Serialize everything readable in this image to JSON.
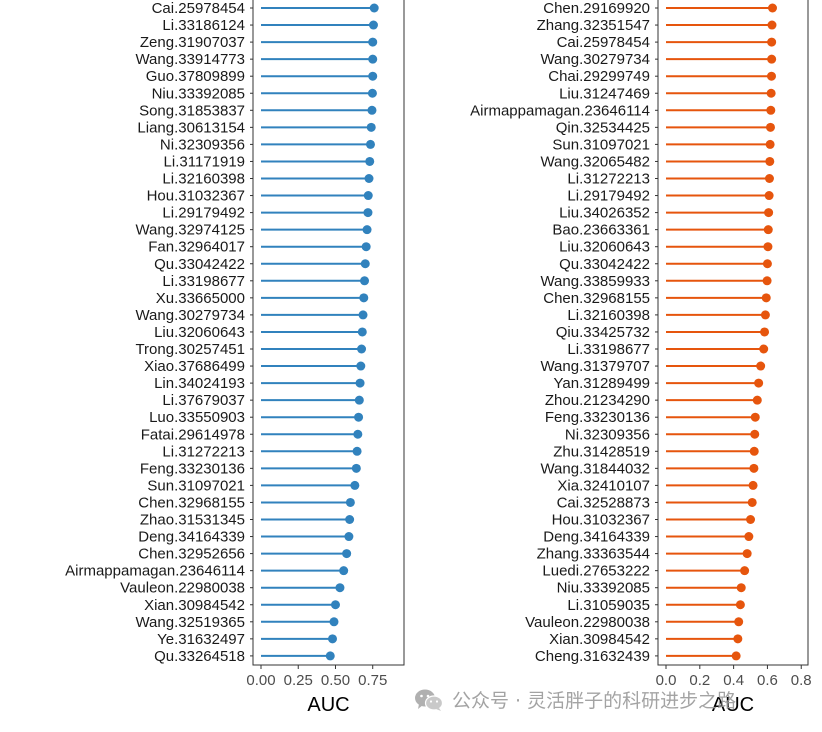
{
  "chart_data": [
    {
      "type": "lollipop",
      "color": "#3182bd",
      "xlabel": "AUC",
      "xlim": [
        0,
        0.96
      ],
      "xticks": [
        0.0,
        0.25,
        0.5,
        0.75
      ],
      "xtick_labels": [
        "0.00",
        "0.25",
        "0.50",
        "0.75"
      ],
      "categories": [
        "Cai.25978454",
        "Li.33186124",
        "Zeng.31907037",
        "Wang.33914773",
        "Guo.37809899",
        "Niu.33392085",
        "Song.31853837",
        "Liang.30613154",
        "Ni.32309356",
        "Li.31171919",
        "Li.32160398",
        "Hou.31032367",
        "Li.29179492",
        "Wang.32974125",
        "Fan.32964017",
        "Qu.33042422",
        "Li.33198677",
        "Xu.33665000",
        "Wang.30279734",
        "Liu.32060643",
        "Trong.30257451",
        "Xiao.37686499",
        "Lin.34024193",
        "Li.37679037",
        "Luo.33550903",
        "Fatai.29614978",
        "Li.31272213",
        "Feng.33230136",
        "Sun.31097021",
        "Chen.32968155",
        "Zhao.31531345",
        "Deng.34164339",
        "Chen.32952656",
        "Airmappamagan.23646114",
        "Vauleon.22980038",
        "Xian.30984542",
        "Wang.32519365",
        "Ye.31632497",
        "Qu.33264518"
      ],
      "values": [
        0.76,
        0.755,
        0.75,
        0.75,
        0.75,
        0.748,
        0.745,
        0.74,
        0.735,
        0.73,
        0.725,
        0.72,
        0.718,
        0.712,
        0.706,
        0.7,
        0.695,
        0.69,
        0.685,
        0.68,
        0.675,
        0.67,
        0.665,
        0.66,
        0.655,
        0.65,
        0.645,
        0.64,
        0.63,
        0.6,
        0.595,
        0.59,
        0.575,
        0.555,
        0.53,
        0.5,
        0.49,
        0.48,
        0.465
      ]
    },
    {
      "type": "lollipop",
      "color": "#e6550d",
      "xlabel": "AUC",
      "xlim": [
        0,
        0.84
      ],
      "xticks": [
        0.0,
        0.2,
        0.4,
        0.6,
        0.8
      ],
      "xtick_labels": [
        "0.0",
        "0.2",
        "0.4",
        "0.6",
        "0.8"
      ],
      "categories": [
        "Chen.29169920",
        "Zhang.32351547",
        "Cai.25978454",
        "Wang.30279734",
        "Chai.29299749",
        "Liu.31247469",
        "Airmappamagan.23646114",
        "Qin.32534425",
        "Sun.31097021",
        "Wang.32065482",
        "Li.31272213",
        "Li.29179492",
        "Liu.34026352",
        "Bao.23663361",
        "Liu.32060643",
        "Qu.33042422",
        "Wang.33859933",
        "Chen.32968155",
        "Li.32160398",
        "Qiu.33425732",
        "Li.33198677",
        "Wang.31379707",
        "Yan.31289499",
        "Zhou.21234290",
        "Feng.33230136",
        "Ni.32309356",
        "Zhu.31428519",
        "Wang.31844032",
        "Xia.32410107",
        "Cai.32528873",
        "Hou.31032367",
        "Deng.34164339",
        "Zhang.33363544",
        "Luedi.27653222",
        "Niu.33392085",
        "Li.31059035",
        "Vauleon.22980038",
        "Xian.30984542",
        "Cheng.31632439"
      ],
      "values": [
        0.63,
        0.627,
        0.625,
        0.625,
        0.624,
        0.622,
        0.62,
        0.618,
        0.616,
        0.614,
        0.612,
        0.61,
        0.607,
        0.605,
        0.603,
        0.6,
        0.598,
        0.593,
        0.588,
        0.583,
        0.578,
        0.56,
        0.548,
        0.54,
        0.528,
        0.525,
        0.522,
        0.52,
        0.515,
        0.51,
        0.5,
        0.49,
        0.48,
        0.465,
        0.445,
        0.44,
        0.43,
        0.425,
        0.415
      ]
    }
  ],
  "watermark": {
    "icon": "wechat-icon",
    "text": "公众号 · 灵活胖子的科研进步之路"
  }
}
